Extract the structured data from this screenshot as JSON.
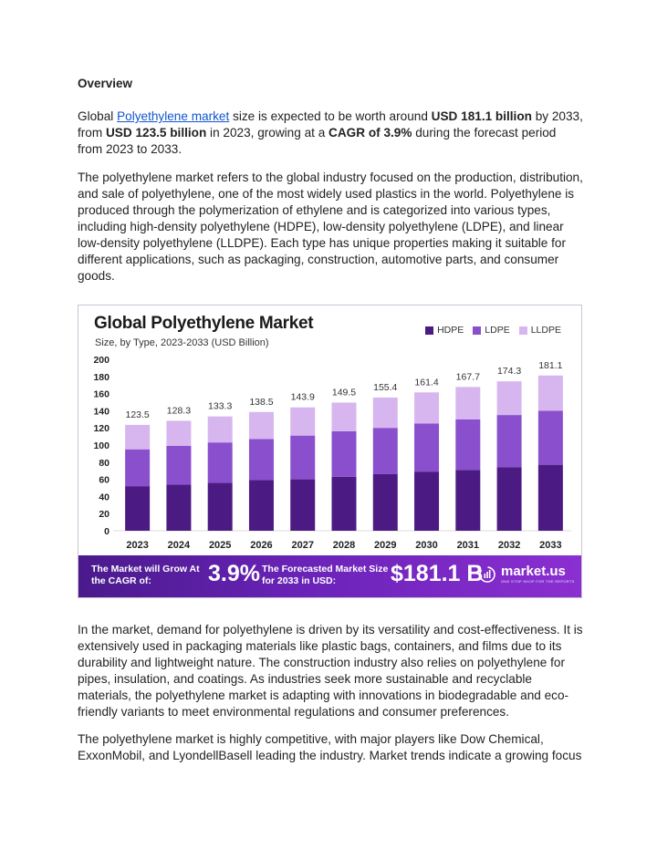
{
  "article": {
    "heading": "Overview",
    "p1": {
      "before_link": "Global ",
      "link": "Polyethylene market",
      "after_link": " size is expected to be worth around ",
      "bold1": "USD 181.1 billion",
      "text2": " by 2033, from ",
      "bold2": "USD 123.5 billion",
      "text3": " in 2023, growing at a ",
      "bold3": "CAGR of 3.9%",
      "text4": " during the forecast period from 2023 to 2033."
    },
    "p2": "The polyethylene market refers to the global industry focused on the production, distribution, and sale of polyethylene, one of the most widely used plastics in the world. Polyethylene is produced through the polymerization of ethylene and is categorized into various types, including high-density polyethylene (HDPE), low-density polyethylene (LDPE), and linear low-density polyethylene (LLDPE). Each type has unique properties making it suitable for different applications, such as packaging, construction, automotive parts, and consumer goods.",
    "p3": "In the market, demand for polyethylene is driven by its versatility and cost-effectiveness. It is extensively used in packaging materials like plastic bags, containers, and films due to its durability and lightweight nature. The construction industry also relies on polyethylene for pipes, insulation, and coatings. As industries seek more sustainable and recyclable materials, the polyethylene market is adapting with innovations in biodegradable and eco-friendly variants to meet environmental regulations and consumer preferences.",
    "p4": "The polyethylene market is highly competitive, with major players like Dow Chemical, ExxonMobil, and LyondellBasell leading the industry. Market trends indicate a growing focus"
  },
  "figure": {
    "banner": {
      "cagr_label": "The Market will Grow At the CAGR of:",
      "cagr_value": "3.9%",
      "forecast_label": "The Forecasted Market Size for 2033 in USD:",
      "forecast_value": "$181.1 B",
      "brand": "market.us",
      "brand_tagline": "ONE STOP SHOP FOR THE REPORTS"
    },
    "colors": {
      "HDPE": "#4b1a83",
      "LDPE": "#8a4fcc",
      "LLDPE": "#d7b6ef"
    }
  },
  "chart_data": {
    "type": "bar",
    "stacked": true,
    "title": "Global Polyethylene Market",
    "subtitle": "Size, by Type, 2023-2033 (USD Billion)",
    "categories": [
      "2023",
      "2024",
      "2025",
      "2026",
      "2027",
      "2028",
      "2029",
      "2030",
      "2031",
      "2032",
      "2033"
    ],
    "series": [
      {
        "name": "HDPE",
        "values": [
          52,
          54,
          56,
          59,
          60,
          63,
          66,
          69,
          71,
          74,
          77
        ]
      },
      {
        "name": "LDPE",
        "values": [
          43,
          45,
          47,
          48,
          51,
          53,
          54,
          56,
          59,
          61,
          63
        ]
      },
      {
        "name": "LLDPE",
        "values": [
          28.5,
          29.3,
          30.3,
          31.5,
          32.9,
          33.5,
          35.4,
          36.4,
          37.7,
          39.3,
          41.1
        ]
      }
    ],
    "totals": [
      123.5,
      128.3,
      133.3,
      138.5,
      143.9,
      149.5,
      155.4,
      161.4,
      167.7,
      174.3,
      181.1
    ],
    "ylim": [
      0,
      200
    ],
    "yticks": [
      0,
      20,
      40,
      60,
      80,
      100,
      120,
      140,
      160,
      180,
      200
    ],
    "legend": "top-right",
    "grid": false
  }
}
